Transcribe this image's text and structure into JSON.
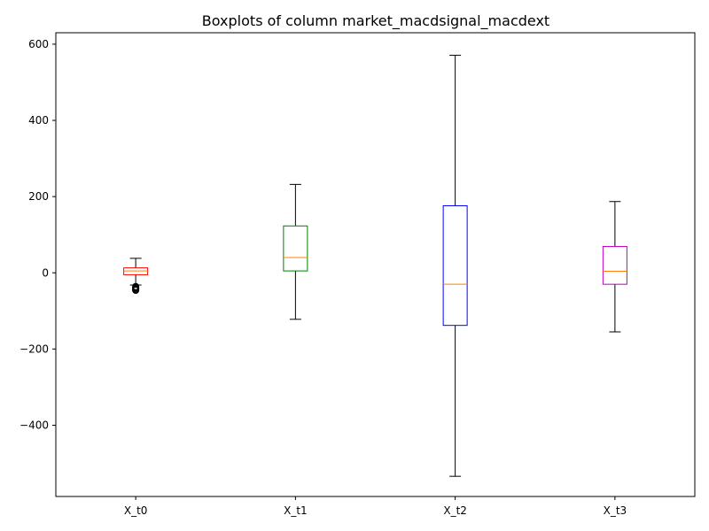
{
  "chart_data": {
    "type": "boxplot",
    "title": "Boxplots of column market_macdsignal_macdext",
    "xlabel": "",
    "ylabel": "",
    "ylim": [
      -587,
      630
    ],
    "yticks": [
      -400,
      -200,
      0,
      200,
      400,
      600
    ],
    "ytick_labels": [
      "−400",
      "−200",
      "0",
      "200",
      "400",
      "600"
    ],
    "grid": false,
    "series": [
      {
        "label": "X_t0",
        "color": "#ff0000",
        "whisker_low": -32,
        "q1": -5,
        "median": 5,
        "q3": 13,
        "whisker_high": 38,
        "outliers": [
          -36,
          -38,
          -40,
          -42,
          -44,
          -46
        ]
      },
      {
        "label": "X_t1",
        "color": "#008000",
        "whisker_low": -122,
        "q1": 5,
        "median": 40,
        "q3": 123,
        "whisker_high": 232,
        "outliers": []
      },
      {
        "label": "X_t2",
        "color": "#0000ff",
        "whisker_low": -534,
        "q1": -138,
        "median": -30,
        "q3": 176,
        "whisker_high": 571,
        "outliers": []
      },
      {
        "label": "X_t3",
        "color": "#bf00bf",
        "whisker_low": -155,
        "q1": -30,
        "median": 4,
        "q3": 69,
        "whisker_high": 187,
        "outliers": []
      }
    ],
    "median_color": "#ff7f0e"
  }
}
